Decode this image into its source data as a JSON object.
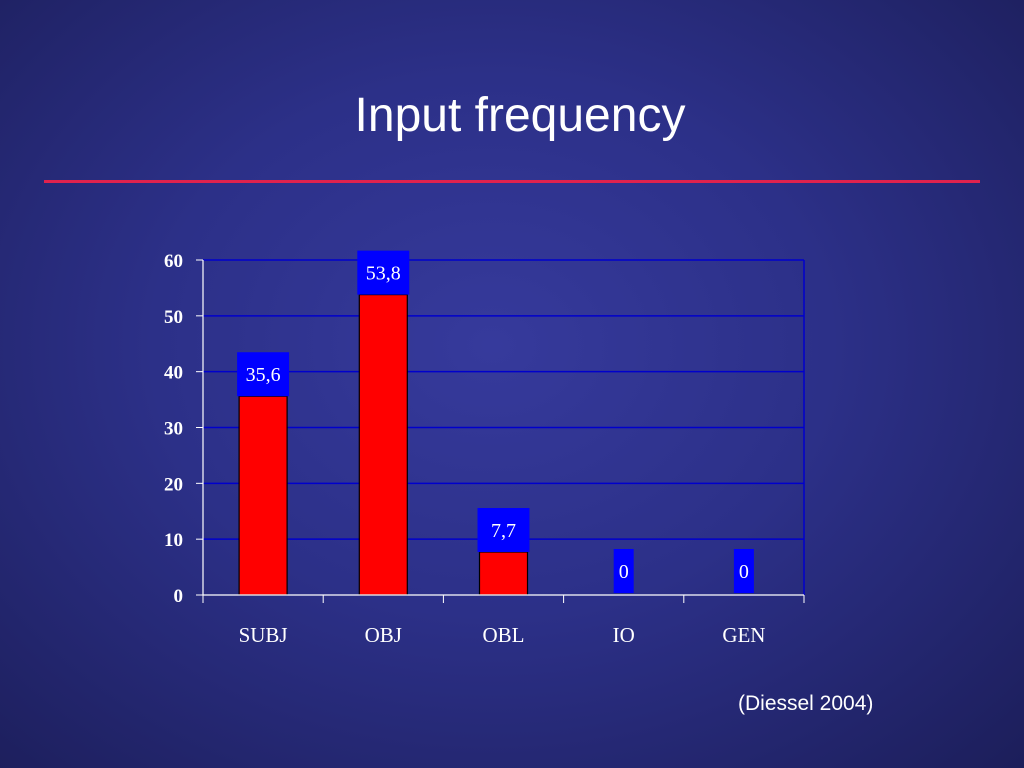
{
  "slide": {
    "title": "Input frequency",
    "source_note": "(Diessel 2004)"
  },
  "colors": {
    "title_rule": "#e0224e",
    "bar_fill": "#ff0000",
    "gridline": "#0000cc",
    "data_label_bg": "#0000ff",
    "text": "#ffffff"
  },
  "chart_data": {
    "type": "bar",
    "categories": [
      "SUBJ",
      "OBJ",
      "OBL",
      "IO",
      "GEN"
    ],
    "values": [
      35.6,
      53.8,
      7.7,
      0,
      0
    ],
    "value_labels": [
      "35,6",
      "53,8",
      "7,7",
      "0",
      "0"
    ],
    "y_ticks": [
      "0",
      "10",
      "20",
      "30",
      "40",
      "50",
      "60"
    ],
    "ylim": [
      0,
      60
    ],
    "grid": true,
    "legend": false
  }
}
